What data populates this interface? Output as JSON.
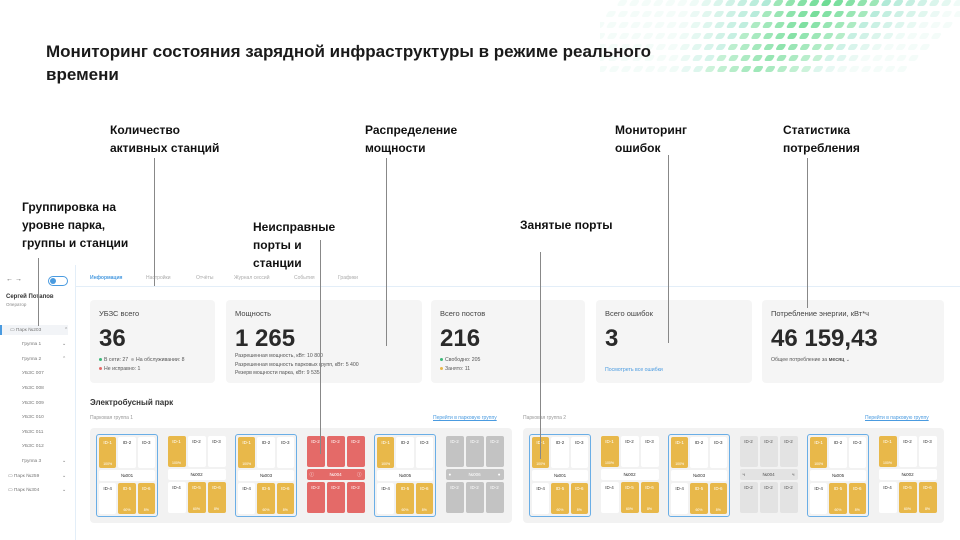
{
  "slide_title": "Мониторинг состояния зарядной инфраструктуры в режиме реального времени",
  "annotations": {
    "active_stations": "Количество активных станций",
    "power_distribution": "Распределение мощности",
    "error_monitoring": "Мониторинг ошибок",
    "consumption_stats": "Статистика потребления",
    "grouping": "Группировка на уровне парка, группы и станции",
    "faulty_ports": "Неисправные порты и станции",
    "busy_ports": "Занятые порты"
  },
  "sidebar": {
    "back": "←",
    "forward": "→",
    "user_name": "Сергей Потапов",
    "user_role": "Оператор",
    "items": [
      {
        "label": "Парк №203",
        "chev": "⌃"
      },
      {
        "label": "Группа 1",
        "chev": "⌄"
      },
      {
        "label": "Группа 2",
        "chev": "⌃"
      },
      {
        "label": "УБЗС 007"
      },
      {
        "label": "УБЗС 008"
      },
      {
        "label": "УБЗС 009"
      },
      {
        "label": "УБЗС 010"
      },
      {
        "label": "УБЗС 011"
      },
      {
        "label": "УБЗС 012"
      },
      {
        "label": "Группа 3",
        "chev": "⌄"
      },
      {
        "label": "Парк №259",
        "chev": "⌄"
      },
      {
        "label": "Парк №304",
        "chev": "⌄"
      }
    ]
  },
  "tabs": [
    "Информация",
    "Настройки",
    "Отчёты",
    "Журнал сессий",
    "События",
    "Графики"
  ],
  "cards": {
    "stations": {
      "title": "УБЗС всего",
      "value": "36",
      "online": "В сети: 27",
      "service": "На обслуживании: 8",
      "faulty": "Не исправно: 1"
    },
    "power": {
      "title": "Мощность",
      "value": "1 265",
      "l1": "Разрешенная мощность, кВт: 10 800",
      "l2": "Разрешенная мощность парковых групп, кВт: 5 400",
      "l3": "Резерв мощности парка, кВт: 9 535"
    },
    "posts": {
      "title": "Всего постов",
      "value": "216",
      "free": "Свободно: 205",
      "busy": "Занято: 11"
    },
    "errors": {
      "title": "Всего ошибок",
      "value": "3",
      "link": "Посмотреть все ошибки"
    },
    "energy": {
      "title": "Потребление энергии, кВт*ч",
      "value": "46 159,43",
      "period_prefix": "Общее потребление за",
      "period": "месяц"
    }
  },
  "section_title": "Электробусный парк",
  "groups": [
    {
      "label": "Парковая группа 1",
      "link": "Перейти в парковую группу",
      "stations": [
        {
          "name": "№001",
          "state": "normal",
          "hl": true
        },
        {
          "name": "№002",
          "state": "normal",
          "hl": false
        },
        {
          "name": "№003",
          "state": "normal",
          "hl": true
        },
        {
          "name": "№004",
          "state": "err",
          "hl": false
        },
        {
          "name": "№005",
          "state": "normal",
          "hl": true
        },
        {
          "name": "№006",
          "state": "off",
          "hl": false
        }
      ]
    },
    {
      "label": "Парковая группа 2",
      "link": "Перейти в парковую группу",
      "stations": [
        {
          "name": "№001",
          "state": "normal",
          "hl": true
        },
        {
          "name": "№002",
          "state": "normal",
          "hl": false
        },
        {
          "name": "№003",
          "state": "normal",
          "hl": true
        },
        {
          "name": "№004",
          "state": "idle",
          "hl": false
        },
        {
          "name": "№005",
          "state": "normal",
          "hl": true
        },
        {
          "name": "№002",
          "state": "normal",
          "hl": false
        }
      ]
    }
  ],
  "normal_ports": {
    "top": [
      {
        "id": "ID-1",
        "pct": "100%",
        "busy": true
      },
      {
        "id": "ID-2"
      },
      {
        "id": "ID-3"
      }
    ],
    "bottom": [
      {
        "id": "ID-4"
      },
      {
        "id": "ID-5",
        "pct": "60%",
        "busy": true
      },
      {
        "id": "ID-6",
        "pct": "8%",
        "busy": true
      }
    ]
  },
  "fault_port_label": "ID-2",
  "colors": {
    "accent": "#4a9be0",
    "busy": "#e8b84a",
    "error": "#e46a68",
    "offline": "#c3c3c3",
    "online": "#3cb878"
  }
}
